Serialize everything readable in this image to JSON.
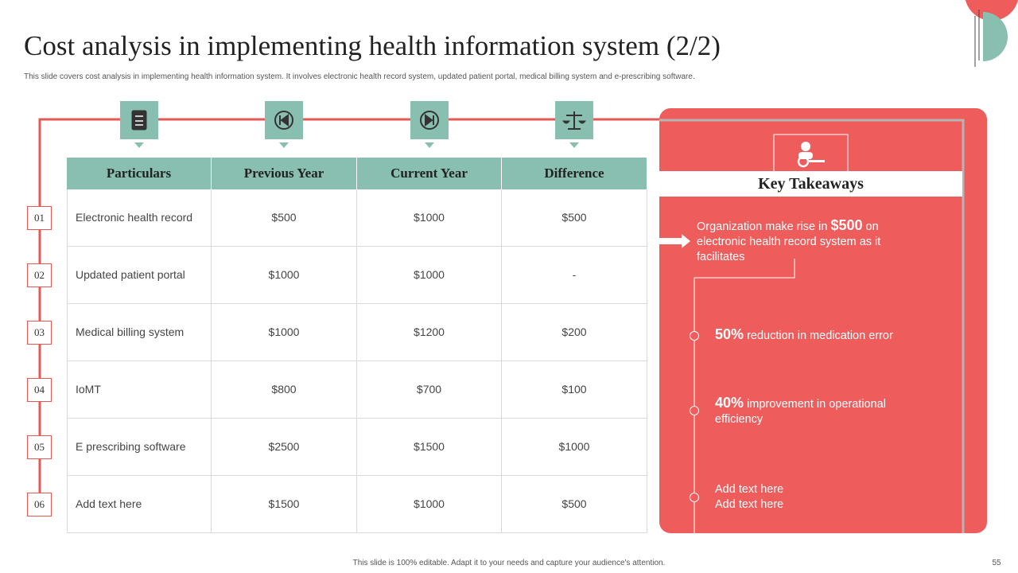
{
  "header": {
    "title": "Cost analysis in implementing health information system (2/2)",
    "subtitle": "This slide covers cost analysis in implementing health information system. It involves electronic health record system, updated patient portal, medical billing system and e-prescribing software."
  },
  "row_numbers": [
    "01",
    "02",
    "03",
    "04",
    "05",
    "06"
  ],
  "table": {
    "columns": [
      "Particulars",
      "Previous Year",
      "Current Year",
      "Difference"
    ],
    "rows": [
      [
        "Electronic health record",
        "$500",
        "$1000",
        "$500"
      ],
      [
        "Updated patient portal",
        "$1000",
        "$1000",
        "-"
      ],
      [
        "Medical billing system",
        "$1000",
        "$1200",
        "$200"
      ],
      [
        "IoMT",
        "$800",
        "$700",
        "$100"
      ],
      [
        "E prescribing software",
        "$2500",
        "$1500",
        "$1000"
      ],
      [
        "Add text here",
        "$1500",
        "$1000",
        "$500"
      ]
    ]
  },
  "takeaways": {
    "title": "Key Takeaways",
    "lead": {
      "text": "Organization make rise in",
      "highlight": "$500",
      "rest": "on electronic health record system as it facilitates"
    },
    "items": [
      {
        "highlight": "50%",
        "text": "reduction in medication error"
      },
      {
        "highlight": "40%",
        "text": "improvement in operational efficiency"
      }
    ],
    "placeholder": [
      "Add text here",
      "Add text here"
    ]
  },
  "footer": {
    "note": "This slide is 100% editable. Adapt it to your needs and capture your audience's attention.",
    "page": "55"
  }
}
